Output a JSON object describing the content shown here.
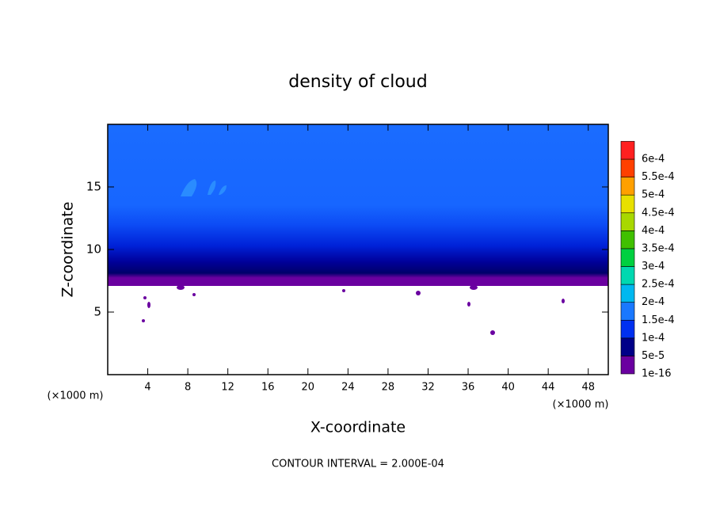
{
  "chart_data": {
    "type": "contour",
    "title": "density of cloud",
    "x_label": "X-coordinate",
    "y_label": "Z-coordinate",
    "x_unit": "(×1000 m)",
    "footer": "CONTOUR INTERVAL = 2.000E-04",
    "xlim": [
      0,
      50
    ],
    "xticks": [
      4,
      8,
      12,
      16,
      20,
      24,
      28,
      32,
      36,
      40,
      44,
      48
    ],
    "ylim": [
      0,
      20
    ],
    "yticks": [
      5,
      10,
      15
    ],
    "levels": [
      {
        "value": 1e-16,
        "label": "1e-16"
      },
      {
        "value": 5e-05,
        "label": "5e-5"
      },
      {
        "value": 0.0001,
        "label": "1e-4"
      },
      {
        "value": 0.00015,
        "label": "1.5e-4"
      },
      {
        "value": 0.0002,
        "label": "2e-4"
      },
      {
        "value": 0.00025,
        "label": "2.5e-4"
      },
      {
        "value": 0.0003,
        "label": "3e-4"
      },
      {
        "value": 0.00035,
        "label": "3.5e-4"
      },
      {
        "value": 0.0004,
        "label": "4e-4"
      },
      {
        "value": 0.00045,
        "label": "4.5e-4"
      },
      {
        "value": 0.0005,
        "label": "5e-4"
      },
      {
        "value": 0.00055,
        "label": "5.5e-4"
      },
      {
        "value": 0.0006,
        "label": "6e-4"
      }
    ],
    "colors": [
      "#6a00a0",
      "#000088",
      "#0030f0",
      "#1a78ff",
      "#00b8f0",
      "#00d8b0",
      "#00d040",
      "#40c000",
      "#a8d800",
      "#e8e000",
      "#ffa000",
      "#ff4000",
      "#ff2020",
      "#ff8888"
    ]
  }
}
